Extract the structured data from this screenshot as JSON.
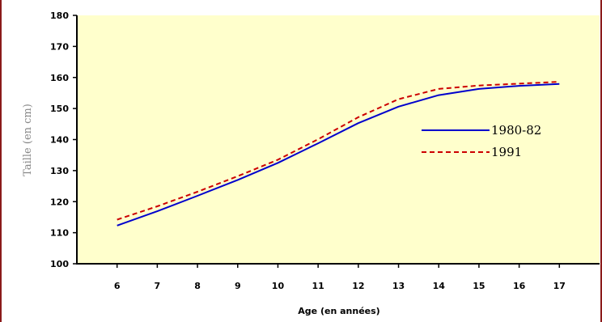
{
  "chart_data": {
    "type": "line",
    "title": "",
    "xlabel": "Age (en années)",
    "ylabel": "Taille (en cm)",
    "x": [
      6,
      7,
      8,
      9,
      10,
      11,
      12,
      13,
      14,
      15,
      16,
      17
    ],
    "xlim": [
      5,
      18
    ],
    "ylim": [
      100,
      180
    ],
    "yticks": [
      100,
      110,
      120,
      130,
      140,
      150,
      160,
      170,
      180
    ],
    "grid": false,
    "legend": "right",
    "plot_background": "#ffffcc",
    "series": [
      {
        "name": "1980-82",
        "color": "#0000cc",
        "dash": "solid",
        "values": [
          112.3,
          116.9,
          121.9,
          127.0,
          132.5,
          138.8,
          145.3,
          150.6,
          154.3,
          156.3,
          157.3,
          157.9
        ]
      },
      {
        "name": "1991",
        "color": "#cc0000",
        "dash": "dashed",
        "values": [
          114.2,
          118.5,
          123.2,
          128.2,
          133.5,
          140.1,
          147.2,
          153.0,
          156.3,
          157.4,
          158.0,
          158.6
        ]
      }
    ]
  }
}
